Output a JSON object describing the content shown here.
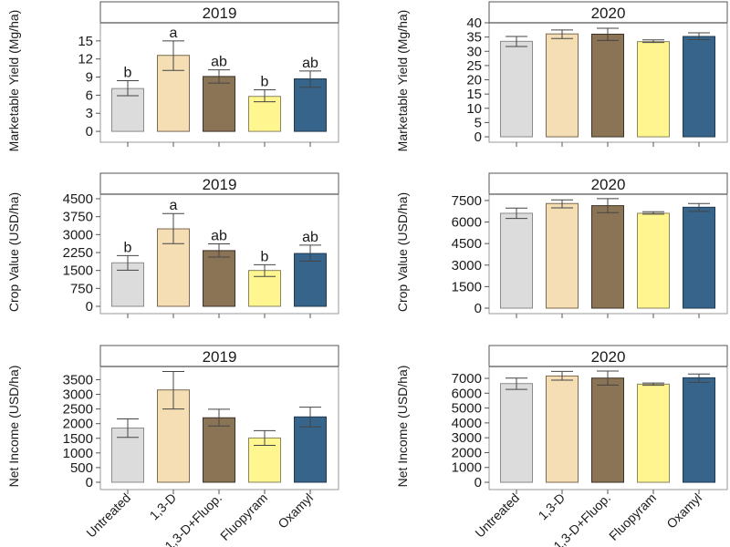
{
  "figure": {
    "categories": [
      "Untreated",
      "1,3-D",
      "1,3-D+Fluop.",
      "Fluopyram",
      "Oxamyl"
    ],
    "colors": [
      "#DCDCDC",
      "#F5DEB3",
      "#8B7355",
      "#FFF68F",
      "#36648B"
    ],
    "border_colors": [
      "#8a8a8a",
      "#7a6a50",
      "#3d3226",
      "#8a8460",
      "#1f3a52"
    ]
  },
  "chart_data": [
    {
      "type": "bar",
      "title": "2019",
      "ylabel": "Marketable Yield (Mg/ha)",
      "xlabel": "",
      "categories": [
        "Untreated",
        "1,3-D",
        "1,3-D+Fluop.",
        "Fluopyram",
        "Oxamyl"
      ],
      "values": [
        7.1,
        12.6,
        9.1,
        5.8,
        8.7
      ],
      "error_low": [
        5.9,
        10.1,
        8.0,
        4.9,
        7.3
      ],
      "error_high": [
        8.4,
        15.0,
        10.2,
        6.9,
        10.0
      ],
      "letters": [
        "b",
        "a",
        "ab",
        "b",
        "ab"
      ],
      "yticks": [
        0,
        3,
        6,
        9,
        12,
        15
      ],
      "ytick_labels": [
        "0",
        "3",
        "6",
        "9",
        "12",
        "15"
      ],
      "ylim": [
        -1.8,
        18
      ]
    },
    {
      "type": "bar",
      "title": "2020",
      "ylabel": "Marketable Yield (Mg/ha)",
      "xlabel": "",
      "categories": [
        "Untreated",
        "1,3-D",
        "1,3-D+Fluop.",
        "Fluopyram",
        "Oxamyl"
      ],
      "values": [
        33.5,
        36.1,
        36.0,
        33.4,
        35.2
      ],
      "error_low": [
        31.7,
        34.5,
        33.8,
        33.1,
        34.1
      ],
      "error_high": [
        35.2,
        37.5,
        38.1,
        34.0,
        36.5
      ],
      "letters": [
        "",
        "",
        "",
        "",
        ""
      ],
      "yticks": [
        0,
        5,
        10,
        15,
        20,
        25,
        30,
        35,
        40
      ],
      "ytick_labels": [
        "0",
        "5",
        "10",
        "15",
        "20",
        "25",
        "30",
        "35",
        "40"
      ],
      "ylim": [
        -1.9,
        40
      ]
    },
    {
      "type": "bar",
      "title": "2019",
      "ylabel": "Crop Value (USD/ha)",
      "xlabel": "",
      "categories": [
        "Untreated",
        "1,3-D",
        "1,3-D+Fluop.",
        "Fluopyram",
        "Oxamyl"
      ],
      "values": [
        1820,
        3240,
        2330,
        1500,
        2210
      ],
      "error_low": [
        1510,
        2620,
        2060,
        1250,
        1890
      ],
      "error_high": [
        2120,
        3880,
        2610,
        1740,
        2560
      ],
      "letters": [
        "b",
        "a",
        "ab",
        "b",
        "ab"
      ],
      "yticks": [
        0,
        750,
        1500,
        2250,
        3000,
        3750,
        4500
      ],
      "ytick_labels": [
        "0",
        "750",
        "1500",
        "2250",
        "3000",
        "3750",
        "4500"
      ],
      "ylim": [
        -305,
        4690
      ]
    },
    {
      "type": "bar",
      "title": "2020",
      "ylabel": "Crop Value (USD/ha)",
      "xlabel": "",
      "categories": [
        "Untreated",
        "1,3-D",
        "1,3-D+Fluop.",
        "Fluopyram",
        "Oxamyl"
      ],
      "values": [
        6610,
        7290,
        7140,
        6610,
        7030
      ],
      "error_low": [
        6250,
        6990,
        6650,
        6550,
        6740
      ],
      "error_high": [
        6970,
        7540,
        7630,
        6720,
        7290
      ],
      "letters": [
        "",
        "",
        "",
        "",
        ""
      ],
      "yticks": [
        0,
        1500,
        3000,
        4500,
        6000,
        7500
      ],
      "ytick_labels": [
        "0",
        "1500",
        "3000",
        "4500",
        "6000",
        "7500"
      ],
      "ylim": [
        -380,
        7940
      ]
    },
    {
      "type": "bar",
      "title": "2019",
      "ylabel": "Net Income (USD/ha)",
      "xlabel": "",
      "categories": [
        "Untreated",
        "1,3-D",
        "1,3-D+Fluop.",
        "Fluopyram",
        "Oxamyl"
      ],
      "values": [
        1850,
        3150,
        2200,
        1510,
        2230
      ],
      "error_low": [
        1530,
        2500,
        1920,
        1260,
        1890
      ],
      "error_high": [
        2160,
        3780,
        2490,
        1760,
        2560
      ],
      "letters": [
        "",
        "",
        "",
        "",
        ""
      ],
      "yticks": [
        0,
        500,
        1000,
        1500,
        2000,
        2500,
        3000,
        3500
      ],
      "ytick_labels": [
        "0",
        "500",
        "1000",
        "1500",
        "2000",
        "2500",
        "3000",
        "3500"
      ],
      "ylim": [
        -250,
        3950
      ]
    },
    {
      "type": "bar",
      "title": "2020",
      "ylabel": "Net Income (USD/ha)",
      "xlabel": "",
      "categories": [
        "Untreated",
        "1,3-D",
        "1,3-D+Fluop.",
        "Fluopyram",
        "Oxamyl"
      ],
      "values": [
        6650,
        7160,
        7020,
        6610,
        7040
      ],
      "error_low": [
        6260,
        6880,
        6550,
        6530,
        6730
      ],
      "error_high": [
        7020,
        7470,
        7490,
        6690,
        7290
      ],
      "letters": [
        "",
        "",
        "",
        "",
        ""
      ],
      "yticks": [
        0,
        1000,
        2000,
        3000,
        4000,
        5000,
        6000,
        7000
      ],
      "ytick_labels": [
        "0",
        "1000",
        "2000",
        "3000",
        "4000",
        "5000",
        "6000",
        "7000"
      ],
      "ylim": [
        -490,
        7800
      ]
    }
  ]
}
